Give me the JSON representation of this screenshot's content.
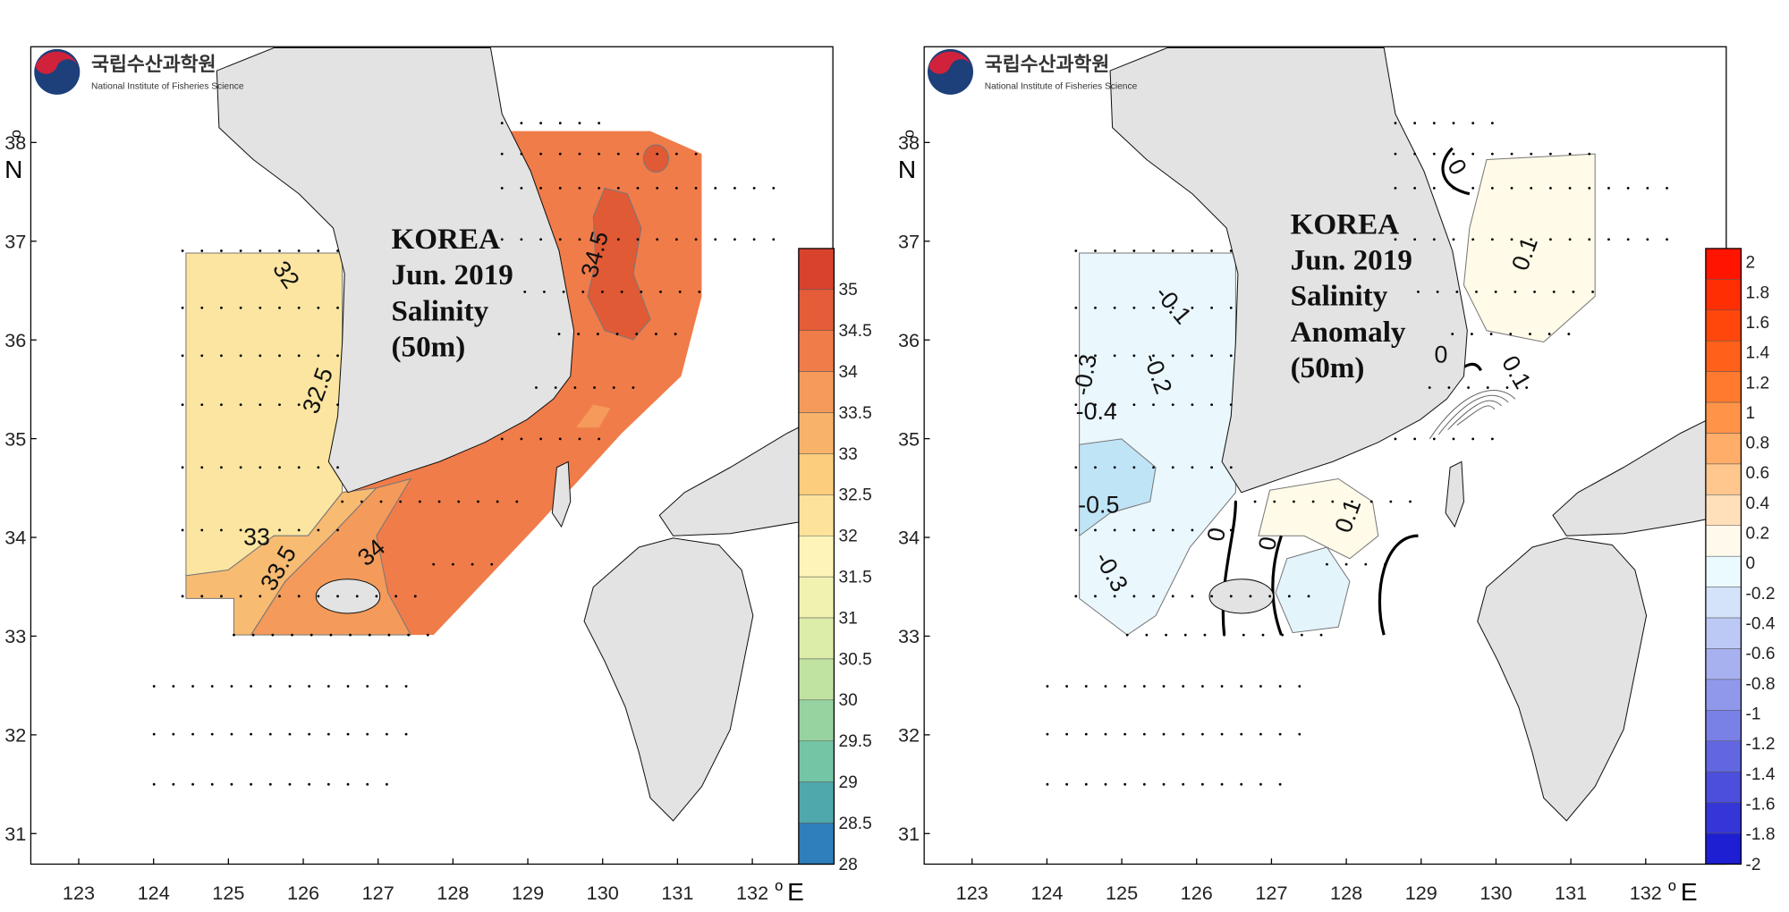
{
  "panels": [
    {
      "logo": {
        "korean": "국립수산과학원",
        "english": "National Institute of Fisheries Science"
      },
      "title": [
        "KOREA",
        "Jun. 2019",
        "Salinity",
        "(50m)"
      ],
      "lat_ticks": [
        "38",
        "37",
        "36",
        "35",
        "34",
        "33",
        "32",
        "31"
      ],
      "lon_ticks": [
        "123",
        "124",
        "125",
        "126",
        "127",
        "128",
        "129",
        "130",
        "131",
        "132"
      ],
      "degree": "o",
      "lat_unit": "N",
      "lon_unit": "E",
      "colorbar": [
        "35",
        "34.5",
        "34",
        "33.5",
        "33",
        "32.5",
        "32",
        "31.5",
        "31",
        "30.5",
        "30",
        "29.5",
        "29",
        "28.5",
        "28"
      ],
      "contour_labels": [
        "32",
        "32.5",
        "33",
        "33.5",
        "34",
        "34.5"
      ]
    },
    {
      "logo": {
        "korean": "국립수산과학원",
        "english": "National Institute of Fisheries Science"
      },
      "title": [
        "KOREA",
        "Jun. 2019",
        "Salinity",
        "Anomaly",
        "(50m)"
      ],
      "lat_ticks": [
        "38",
        "37",
        "36",
        "35",
        "34",
        "33",
        "32",
        "31"
      ],
      "lon_ticks": [
        "123",
        "124",
        "125",
        "126",
        "127",
        "128",
        "129",
        "130",
        "131",
        "132"
      ],
      "degree": "o",
      "lat_unit": "N",
      "lon_unit": "E",
      "colorbar": [
        "2",
        "1.8",
        "1.6",
        "1.4",
        "1.2",
        "1",
        "0.8",
        "0.6",
        "0.4",
        "0.2",
        "0",
        "-0.2",
        "-0.4",
        "-0.6",
        "-0.8",
        "-1",
        "-1.2",
        "-1.4",
        "-1.6",
        "-1.8",
        "-2"
      ],
      "contour_labels": [
        "0",
        "0.1",
        "-0.1",
        "-0.2",
        "-0.3",
        "-0.4",
        "-0.5",
        "-0.3",
        "0",
        "0",
        "0.1",
        "0",
        "0.1"
      ]
    }
  ]
}
